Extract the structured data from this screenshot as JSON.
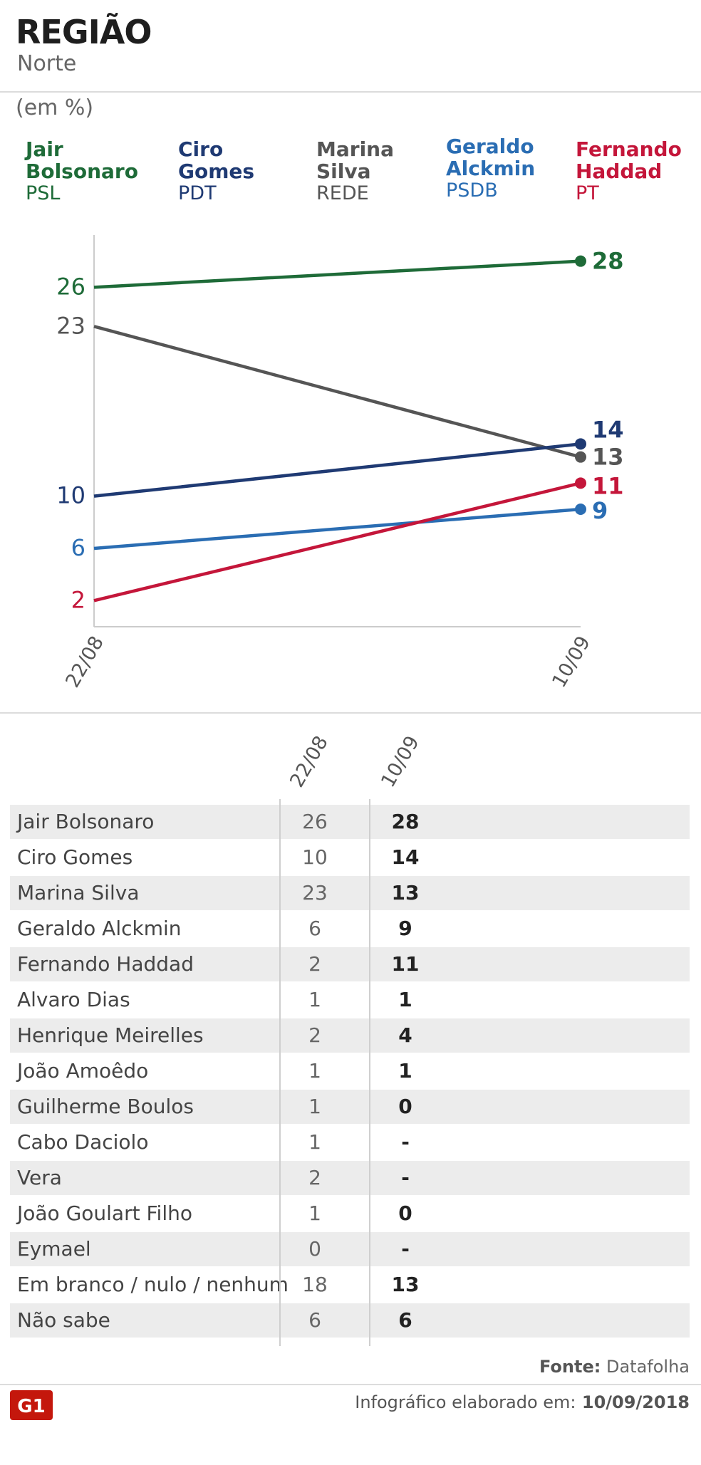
{
  "header": {
    "title": "REGIÃO",
    "subtitle": "Norte",
    "unit": "(em %)"
  },
  "legend": [
    {
      "first": "Jair",
      "last": "Bolsonaro",
      "party": "PSL",
      "color": "#1e6b38"
    },
    {
      "first": "Ciro",
      "last": "Gomes",
      "party": "PDT",
      "color": "#1f3a73"
    },
    {
      "first": "Marina",
      "last": "Silva",
      "party": "REDE",
      "color": "#555555"
    },
    {
      "first": "Geraldo",
      "last": "Alckmin",
      "party": "PSDB",
      "color": "#2a6db3"
    },
    {
      "first": "Fernando",
      "last": "Haddad",
      "party": "PT",
      "color": "#c4163a"
    }
  ],
  "chart_data": {
    "type": "line",
    "x": [
      "22/08",
      "10/09"
    ],
    "series": [
      {
        "name": "Jair Bolsonaro",
        "values": [
          26,
          28
        ],
        "color": "#1e6b38"
      },
      {
        "name": "Marina Silva",
        "values": [
          23,
          13
        ],
        "color": "#555555"
      },
      {
        "name": "Ciro Gomes",
        "values": [
          10,
          14
        ],
        "color": "#1f3a73"
      },
      {
        "name": "Geraldo Alckmin",
        "values": [
          6,
          9
        ],
        "color": "#2a6db3"
      },
      {
        "name": "Fernando Haddad",
        "values": [
          2,
          11
        ],
        "color": "#c4163a"
      }
    ],
    "ylim": [
      0,
      30
    ]
  },
  "table": {
    "headers": [
      "22/08",
      "10/09"
    ],
    "rows": [
      {
        "name": "Jair Bolsonaro",
        "v1": "26",
        "v2": "28"
      },
      {
        "name": "Ciro Gomes",
        "v1": "10",
        "v2": "14"
      },
      {
        "name": "Marina Silva",
        "v1": "23",
        "v2": "13"
      },
      {
        "name": "Geraldo Alckmin",
        "v1": "6",
        "v2": "9"
      },
      {
        "name": "Fernando Haddad",
        "v1": "2",
        "v2": "11"
      },
      {
        "name": "Alvaro Dias",
        "v1": "1",
        "v2": "1"
      },
      {
        "name": "Henrique Meirelles",
        "v1": "2",
        "v2": "4"
      },
      {
        "name": "João Amoêdo",
        "v1": "1",
        "v2": "1"
      },
      {
        "name": "Guilherme Boulos",
        "v1": "1",
        "v2": "0"
      },
      {
        "name": "Cabo Daciolo",
        "v1": "1",
        "v2": "-"
      },
      {
        "name": "Vera",
        "v1": "2",
        "v2": "-"
      },
      {
        "name": "João Goulart Filho",
        "v1": "1",
        "v2": "0"
      },
      {
        "name": "Eymael",
        "v1": "0",
        "v2": "-"
      },
      {
        "name": "Em branco / nulo / nenhum",
        "v1": "18",
        "v2": "13"
      },
      {
        "name": "Não sabe",
        "v1": "6",
        "v2": "6"
      }
    ]
  },
  "footer": {
    "source_label": "Fonte:",
    "source": "Datafolha",
    "credit_label": "Infográfico elaborado em:",
    "credit_date": "10/09/2018",
    "logo_text": "G1",
    "logo_color": "#c4170c"
  }
}
